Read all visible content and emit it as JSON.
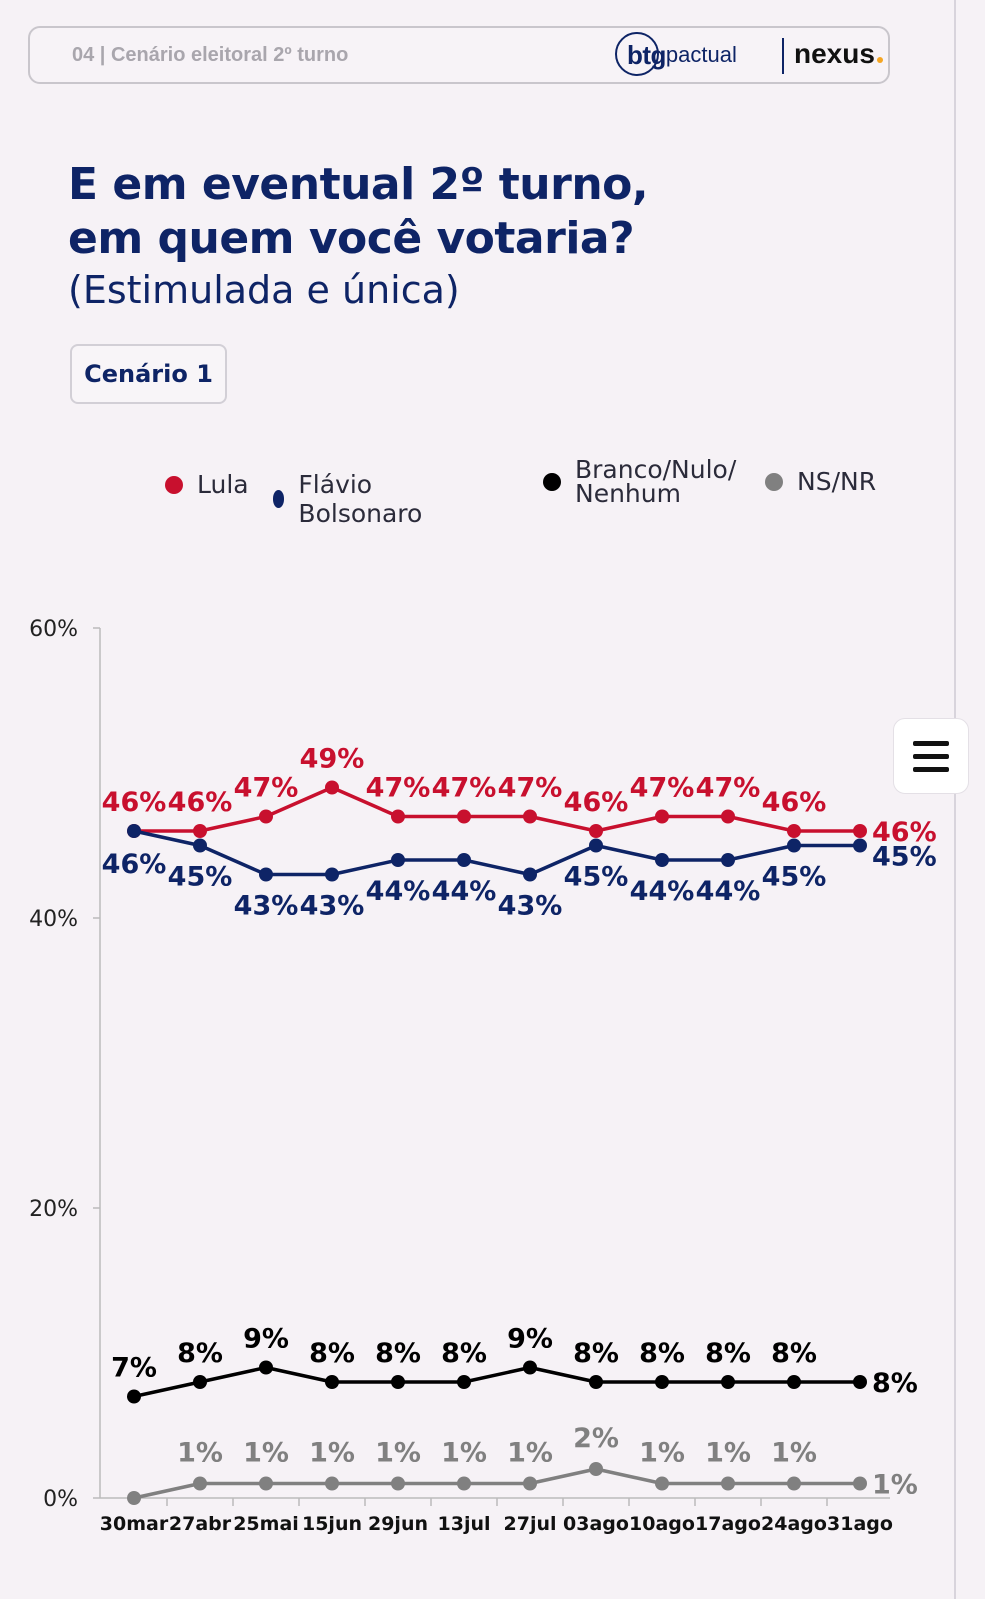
{
  "header": {
    "section_label": "04 | Cenário eleitoral 2º turno",
    "logo_btg": "btg",
    "logo_pactual": "pactual",
    "logo_nexus": "nexus"
  },
  "title_line1": "E em eventual 2º turno,",
  "title_line2": "em quem você votaria?",
  "subtitle": "(Estimulada e única)",
  "scenario_button": "Cenário 1",
  "menu_icon": "hamburger-menu-icon",
  "chart_data": {
    "type": "line",
    "categories": [
      "30mar",
      "27abr",
      "25mai",
      "15jun",
      "29jun",
      "13jul",
      "27jul",
      "03ago",
      "10ago",
      "17ago",
      "24ago",
      "31ago"
    ],
    "yticks": [
      "0%",
      "20%",
      "40%",
      "60%"
    ],
    "ylim": [
      0,
      60
    ],
    "grid": false,
    "legend_position": "top",
    "series": [
      {
        "name": "Lula",
        "color": "#c8102e",
        "values": [
          46,
          46,
          47,
          49,
          47,
          47,
          47,
          46,
          47,
          47,
          46,
          46
        ],
        "labels": [
          "46%",
          "46%",
          "47%",
          "49%",
          "47%",
          "47%",
          "47%",
          "46%",
          "47%",
          "47%",
          "46%",
          "46%"
        ]
      },
      {
        "name": "Flávio Bolsonaro",
        "color": "#0e2466",
        "values": [
          46,
          45,
          43,
          43,
          44,
          44,
          43,
          45,
          44,
          44,
          45,
          45
        ],
        "labels": [
          "46%",
          "45%",
          "43%",
          "43%",
          "44%",
          "44%",
          "43%",
          "45%",
          "44%",
          "44%",
          "45%",
          "45%"
        ]
      },
      {
        "name": "Branco/Nulo/ Nenhum",
        "name_line1": "Branco/Nulo/",
        "name_line2": "Nenhum",
        "color": "#000000",
        "values": [
          7,
          8,
          9,
          8,
          8,
          8,
          9,
          8,
          8,
          8,
          8,
          8
        ],
        "labels": [
          "7%",
          "8%",
          "9%",
          "8%",
          "8%",
          "8%",
          "9%",
          "8%",
          "8%",
          "8%",
          "8%",
          "8%"
        ]
      },
      {
        "name": "NS/NR",
        "color": "#808080",
        "values": [
          0,
          1,
          1,
          1,
          1,
          1,
          1,
          2,
          1,
          1,
          1,
          1
        ],
        "labels": [
          "",
          "1%",
          "1%",
          "1%",
          "1%",
          "1%",
          "1%",
          "2%",
          "1%",
          "1%",
          "1%",
          "1%"
        ]
      }
    ]
  }
}
